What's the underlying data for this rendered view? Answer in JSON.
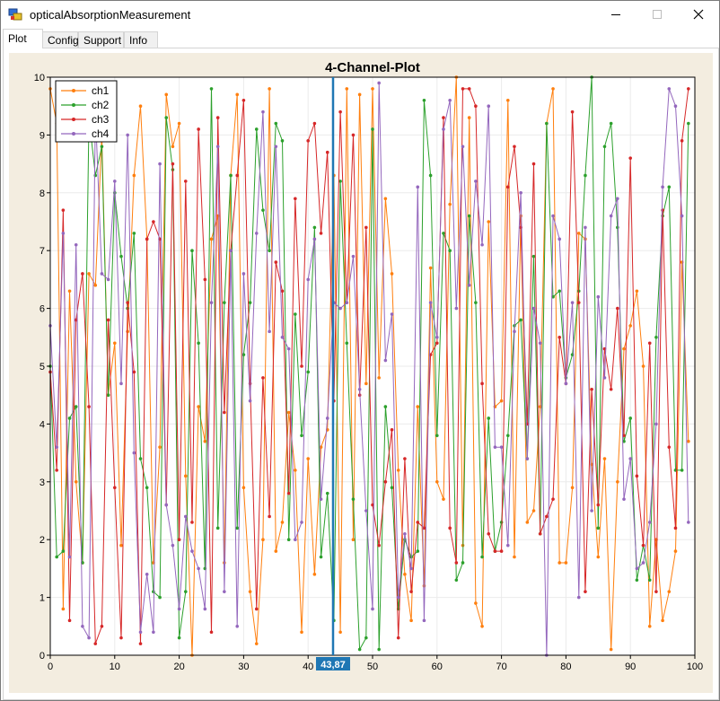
{
  "window": {
    "title": "opticalAbsorptionMeasurement"
  },
  "tabs": [
    {
      "label": "Plot",
      "active": true
    },
    {
      "label": "Config",
      "active": false
    },
    {
      "label": "Support",
      "active": false
    },
    {
      "label": "Info",
      "active": false
    }
  ],
  "cursor": {
    "x": 43.87,
    "label": "43,87"
  },
  "colors": {
    "ch1": "#ff7f0e",
    "ch2": "#2ca02c",
    "ch3": "#d62728",
    "ch4": "#9467bd",
    "cursor": "#1f77b4",
    "plot_background": "#f3ede0"
  },
  "chart_data": {
    "type": "line",
    "title": "4-Channel-Plot",
    "xlabel": "",
    "ylabel": "",
    "xlim": [
      0,
      100
    ],
    "ylim": [
      0,
      10
    ],
    "xticks": [
      "0",
      "10",
      "20",
      "30",
      "40",
      "50",
      "60",
      "70",
      "80",
      "90",
      "100"
    ],
    "yticks": [
      "0",
      "1",
      "2",
      "3",
      "4",
      "5",
      "6",
      "7",
      "8",
      "9",
      "10"
    ],
    "grid": true,
    "legend": "top-left",
    "x": [
      0,
      1,
      2,
      3,
      4,
      5,
      6,
      7,
      8,
      9,
      10,
      11,
      12,
      13,
      14,
      15,
      16,
      17,
      18,
      19,
      20,
      21,
      22,
      23,
      24,
      25,
      26,
      27,
      28,
      29,
      30,
      31,
      32,
      33,
      34,
      35,
      36,
      37,
      38,
      39,
      40,
      41,
      42,
      43,
      44,
      45,
      46,
      47,
      48,
      49,
      50,
      51,
      52,
      53,
      54,
      55,
      56,
      57,
      58,
      59,
      60,
      61,
      62,
      63,
      64,
      65,
      66,
      67,
      68,
      69,
      70,
      71,
      72,
      73,
      74,
      75,
      76,
      77,
      78,
      79,
      80,
      81,
      82,
      83,
      84,
      85,
      86,
      87,
      88,
      89,
      90,
      91,
      92,
      93,
      94,
      95,
      96,
      97,
      98,
      99
    ],
    "series": [
      {
        "name": "ch1",
        "values": [
          9.8,
          9.2,
          0.8,
          6.3,
          3.0,
          1.6,
          6.6,
          6.4,
          9.0,
          4.5,
          5.4,
          1.9,
          5.6,
          8.3,
          9.5,
          7.2,
          1.6,
          3.6,
          9.7,
          8.8,
          9.2,
          3.1,
          0.0,
          4.3,
          3.7,
          7.2,
          7.6,
          1.6,
          8.3,
          9.7,
          2.9,
          1.1,
          0.2,
          2.0,
          9.8,
          1.8,
          2.3,
          4.2,
          3.2,
          0.4,
          3.4,
          1.4,
          3.6,
          3.9,
          8.3,
          0.4,
          9.8,
          2.0,
          9.7,
          4.7,
          9.8,
          4.8,
          7.9,
          6.6,
          3.2,
          1.4,
          0.6,
          4.3,
          1.2,
          6.7,
          3.0,
          2.7,
          7.8,
          10.0,
          1.9,
          9.3,
          0.9,
          0.5,
          7.5,
          4.3,
          4.4,
          9.6,
          1.7,
          7.6,
          2.3,
          2.5,
          4.3,
          9.2,
          9.8,
          1.6,
          1.6,
          2.9,
          7.3,
          7.2,
          3.3,
          1.7,
          3.4,
          0.1,
          3.0,
          5.3,
          5.7,
          6.3,
          5.0,
          0.5,
          2.0,
          0.6,
          1.1,
          1.8,
          6.8,
          3.7
        ]
      },
      {
        "name": "ch2",
        "values": [
          5.0,
          1.7,
          1.8,
          4.1,
          4.3,
          1.6,
          9.3,
          8.3,
          8.8,
          4.5,
          8.0,
          6.9,
          6.0,
          7.3,
          3.4,
          2.9,
          1.1,
          1.0,
          9.3,
          8.4,
          0.3,
          1.1,
          7.0,
          5.4,
          1.5,
          9.8,
          2.2,
          6.1,
          8.3,
          2.2,
          5.2,
          6.1,
          9.1,
          7.7,
          7.0,
          9.2,
          8.9,
          2.0,
          5.9,
          3.8,
          4.9,
          7.4,
          1.7,
          2.8,
          0.6,
          8.2,
          5.4,
          2.7,
          0.1,
          0.3,
          9.1,
          0.1,
          4.3,
          2.9,
          0.8,
          2.0,
          1.7,
          1.8,
          9.6,
          8.3,
          3.8,
          7.3,
          7.0,
          1.3,
          1.6,
          7.6,
          6.1,
          1.7,
          4.1,
          1.8,
          2.3,
          3.8,
          5.7,
          5.8,
          3.4,
          6.9,
          2.1,
          9.2,
          6.2,
          6.3,
          4.8,
          5.2,
          6.3,
          8.3,
          10.0,
          2.2,
          8.8,
          9.2,
          7.4,
          3.7,
          4.1,
          1.3,
          1.9,
          1.3,
          5.5,
          7.6,
          8.1,
          3.2,
          3.2,
          9.2
        ]
      },
      {
        "name": "ch3",
        "values": [
          4.9,
          3.2,
          7.7,
          0.6,
          5.8,
          6.6,
          4.3,
          0.2,
          0.5,
          5.8,
          2.9,
          0.3,
          6.1,
          4.9,
          0.2,
          7.2,
          7.5,
          7.2,
          2.6,
          8.5,
          2.0,
          8.2,
          2.3,
          9.1,
          6.5,
          0.4,
          9.3,
          4.2,
          7.0,
          8.3,
          9.6,
          4.7,
          0.8,
          4.8,
          2.4,
          6.8,
          6.3,
          2.8,
          7.9,
          5.0,
          8.9,
          9.2,
          7.3,
          8.7,
          4.4,
          9.4,
          6.1,
          9.0,
          4.5,
          7.4,
          2.6,
          1.9,
          3.0,
          3.9,
          0.3,
          3.4,
          1.1,
          2.3,
          2.2,
          5.2,
          5.4,
          9.3,
          2.2,
          1.6,
          9.8,
          9.8,
          9.5,
          4.7,
          2.1,
          1.8,
          1.8,
          8.1,
          8.8,
          7.4,
          4.0,
          8.5,
          2.1,
          2.4,
          2.7,
          5.5,
          4.7,
          9.4,
          6.1,
          1.1,
          4.6,
          2.6,
          5.3,
          4.6,
          6.0,
          3.8,
          8.6,
          3.1,
          1.9,
          5.4,
          1.1,
          7.7,
          3.6,
          2.2,
          8.9,
          9.8
        ]
      },
      {
        "name": "ch4",
        "values": [
          5.7,
          3.6,
          7.3,
          1.7,
          7.1,
          0.5,
          0.3,
          9.4,
          6.6,
          6.5,
          8.2,
          4.7,
          9.0,
          3.5,
          0.4,
          1.4,
          0.4,
          8.5,
          2.6,
          1.9,
          0.8,
          2.4,
          1.8,
          1.5,
          0.8,
          6.1,
          8.8,
          1.1,
          7.0,
          0.5,
          6.6,
          4.4,
          7.3,
          9.4,
          5.6,
          8.8,
          5.5,
          5.3,
          2.0,
          2.3,
          6.5,
          7.2,
          2.7,
          4.1,
          6.1,
          6.0,
          6.1,
          6.9,
          4.6,
          2.5,
          0.8,
          9.9,
          5.1,
          5.9,
          1.0,
          2.1,
          1.5,
          8.1,
          0.6,
          6.1,
          5.5,
          9.1,
          9.6,
          6.0,
          8.8,
          6.4,
          8.2,
          7.1,
          9.5,
          3.6,
          3.6,
          1.9,
          5.6,
          8.0,
          3.4,
          6.0,
          5.4,
          0.0,
          7.6,
          7.2,
          4.7,
          6.1,
          1.0,
          7.4,
          2.5,
          6.2,
          4.8,
          7.6,
          7.9,
          2.7,
          3.4,
          1.5,
          1.6,
          2.3,
          4.0,
          8.1,
          9.8,
          9.5,
          7.6,
          2.3
        ]
      }
    ]
  }
}
